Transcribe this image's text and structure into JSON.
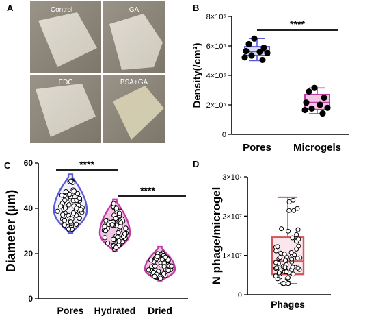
{
  "panel_a": {
    "letter": "A",
    "photos": [
      {
        "label": "Control"
      },
      {
        "label": "GA"
      },
      {
        "label": "EDC"
      },
      {
        "label": "BSA+GA"
      }
    ]
  },
  "colors": {
    "blue": "#5a5ad8",
    "magenta": "#c23ca6",
    "red": "#d05a5a",
    "pink_fill": "#f3c6e6"
  },
  "chart_data": [
    {
      "panel": "B",
      "type": "box",
      "ylabel": "Density(/cm²)",
      "ylim": [
        0,
        800000
      ],
      "yticks": [
        {
          "value": 0,
          "label": "0"
        },
        {
          "value": 200000,
          "label": "2×10⁵"
        },
        {
          "value": 400000,
          "label": "4×10⁵"
        },
        {
          "value": 600000,
          "label": "6×10⁵"
        },
        {
          "value": 800000,
          "label": "8×10⁵"
        }
      ],
      "categories": [
        "Pores",
        "Microgels"
      ],
      "significance": "****",
      "series": [
        {
          "category": "Pores",
          "q1": 535000,
          "median": 562000,
          "q3": 595000,
          "min": 500000,
          "max": 650000,
          "points": [
            650000,
            612000,
            588000,
            565000,
            560000,
            552000,
            535000,
            522000,
            505000
          ]
        },
        {
          "category": "Microgels",
          "q1": 168000,
          "median": 215000,
          "q3": 270000,
          "min": 140000,
          "max": 315000,
          "points": [
            315000,
            290000,
            248000,
            215000,
            200000,
            180000,
            175000,
            165000,
            142000
          ]
        }
      ]
    },
    {
      "panel": "C",
      "type": "violin",
      "ylabel": "Diameter (µm)",
      "ylim": [
        0,
        60
      ],
      "yticks": [
        {
          "value": 0,
          "label": "0"
        },
        {
          "value": 20,
          "label": "20"
        },
        {
          "value": 40,
          "label": "40"
        },
        {
          "value": 60,
          "label": "60"
        }
      ],
      "categories": [
        "Pores",
        "Hydrated",
        "Dried"
      ],
      "significance": [
        {
          "pair": [
            "Pores",
            "Hydrated"
          ],
          "label": "****"
        },
        {
          "pair": [
            "Hydrated",
            "Dried"
          ],
          "label": "****"
        }
      ],
      "distributions": [
        {
          "category": "Pores",
          "min": 29,
          "max": 55,
          "center": 39
        },
        {
          "category": "Hydrated",
          "min": 21,
          "max": 44,
          "center": 29
        },
        {
          "category": "Dried",
          "min": 8,
          "max": 23,
          "center": 13
        }
      ]
    },
    {
      "panel": "D",
      "type": "box",
      "ylabel": "N phage/microgel",
      "ylim": [
        0,
        30000000
      ],
      "yticks": [
        {
          "value": 0,
          "label": "0"
        },
        {
          "value": 10000000,
          "label": "1×10⁷"
        },
        {
          "value": 20000000,
          "label": "2×10⁷"
        },
        {
          "value": 30000000,
          "label": "3×10⁷"
        }
      ],
      "categories": [
        "Phages"
      ],
      "series": [
        {
          "category": "Phages",
          "q1": 5200000,
          "median": 8500000,
          "q3": 14600000,
          "min": 2800000,
          "max": 24800000
        }
      ]
    }
  ]
}
